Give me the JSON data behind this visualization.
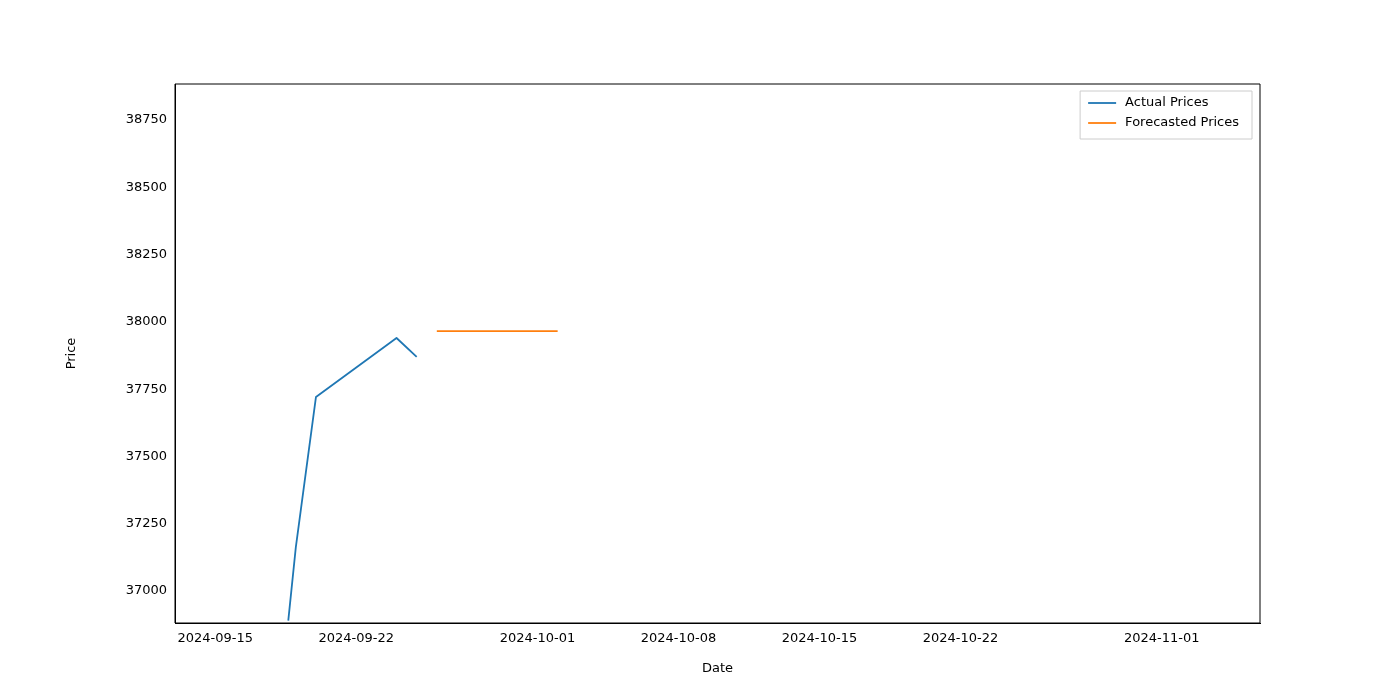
{
  "chart_data": {
    "type": "line",
    "xlabel": "Date",
    "ylabel": "Price",
    "xlim": [
      "2024-09-13",
      "2024-11-05T21:00"
    ],
    "xticks": [
      "2024-09-15",
      "2024-09-22",
      "2024-10-01",
      "2024-10-08",
      "2024-10-15",
      "2024-10-22",
      "2024-11-01"
    ],
    "ylim": [
      36881,
      38884
    ],
    "yticks": [
      37000,
      37250,
      37500,
      37750,
      38000,
      38250,
      38500,
      38750
    ],
    "grid": false,
    "legend": "top right",
    "marker": "none",
    "line_style": "solid",
    "series": [
      {
        "name": "Actual Prices",
        "color": "#1f77b4",
        "x": [
          "2024-09-18T15:00",
          "2024-09-19",
          "2024-09-20",
          "2024-09-24",
          "2024-09-25"
        ],
        "values": [
          36890,
          37163,
          37721,
          37940,
          37870
        ]
      },
      {
        "name": "Forecasted Prices",
        "color": "#ff7f0e",
        "x": [
          "2024-09-26",
          "2024-09-27",
          "2024-09-28",
          "2024-09-29",
          "2024-09-30",
          "2024-10-01",
          "2024-10-02"
        ],
        "values": [
          37966,
          37966,
          37966,
          37966,
          37966,
          37966,
          37966
        ]
      }
    ]
  }
}
